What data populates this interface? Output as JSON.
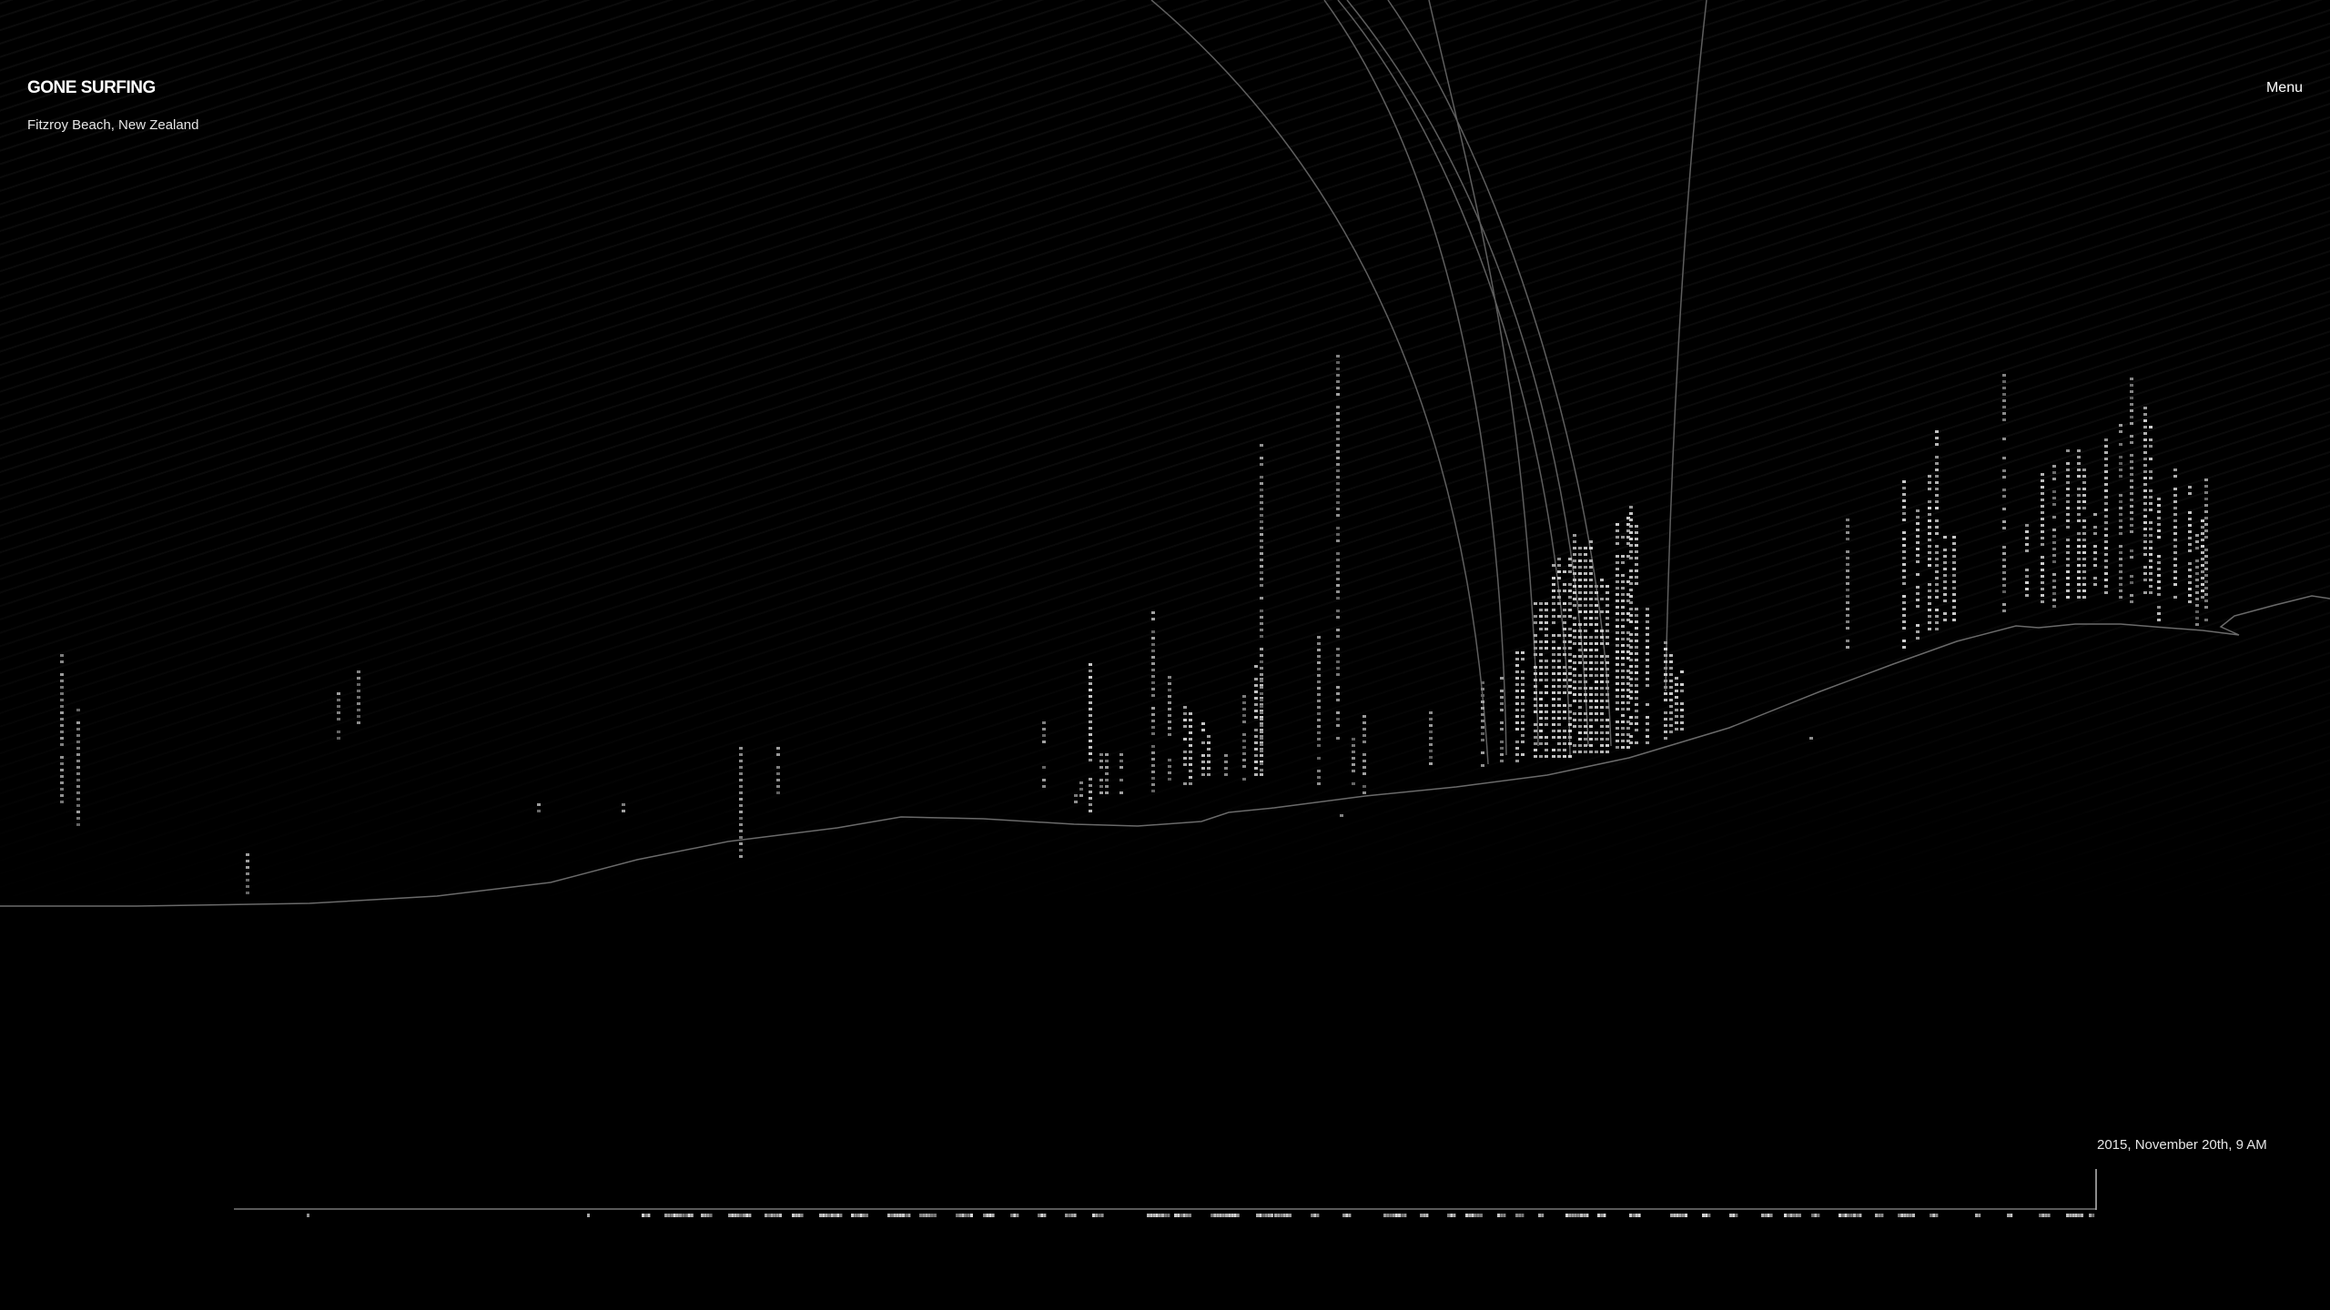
{
  "header": {
    "title": "GONE SURFING",
    "location": "Fitzroy Beach, New Zealand",
    "menu_label": "Menu"
  },
  "timeline": {
    "current_label": "2015, November 20th, 9 AM"
  },
  "colors": {
    "background": "#000000",
    "text": "#ffffff",
    "marks": "#9a9a9a",
    "lines": "#7a7a7a"
  }
}
